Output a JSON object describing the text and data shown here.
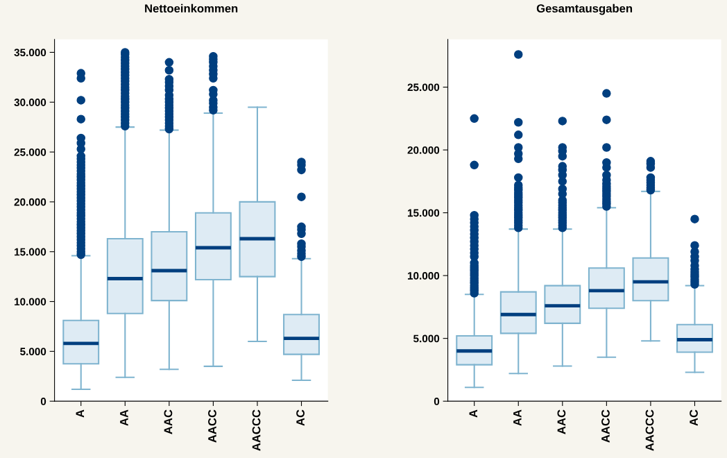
{
  "chart_data": [
    {
      "type": "box",
      "title": "Nettoeinkommen",
      "categories": [
        "A",
        "AA",
        "AAC",
        "AACC",
        "AACCC",
        "AC"
      ],
      "ylim": [
        0,
        36300
      ],
      "yticks": [
        {
          "value": 0,
          "label": "0"
        },
        {
          "value": 5000,
          "label": "5.000"
        },
        {
          "value": 10000,
          "label": "10.000"
        },
        {
          "value": 15000,
          "label": "15.000"
        },
        {
          "value": 20000,
          "label": "20.000"
        },
        {
          "value": 25000,
          "label": "25.000"
        },
        {
          "value": 30000,
          "label": "30.000"
        },
        {
          "value": 35000,
          "label": "35.000"
        }
      ],
      "grid": false,
      "color": "#deebf4",
      "boxes": [
        {
          "low": 1200,
          "q1": 3750,
          "median": 5800,
          "q3": 8100,
          "high": 14600,
          "outliers": [
            14700,
            15000,
            15300,
            15600,
            15900,
            16200,
            16500,
            16800,
            17100,
            17400,
            17700,
            18000,
            18300,
            18600,
            18900,
            19200,
            19500,
            19800,
            20100,
            20400,
            20700,
            21000,
            21300,
            21600,
            21900,
            22200,
            22500,
            22800,
            23100,
            23400,
            23700,
            24000,
            24300,
            24600,
            25300,
            25900,
            26400,
            28300,
            30200,
            32400,
            32900
          ]
        },
        {
          "low": 2400,
          "q1": 8800,
          "median": 12300,
          "q3": 16300,
          "high": 27500,
          "outliers": [
            27600,
            27900,
            28200,
            28500,
            28800,
            29100,
            29400,
            29700,
            30000,
            30300,
            30600,
            30900,
            31200,
            31500,
            31800,
            32100,
            32400,
            32700,
            33000,
            33300,
            33600,
            33900,
            34200,
            34500,
            34800,
            35000
          ]
        },
        {
          "low": 3200,
          "q1": 10100,
          "median": 13100,
          "q3": 17000,
          "high": 27200,
          "outliers": [
            27300,
            27600,
            27900,
            28200,
            28500,
            28800,
            29100,
            29400,
            29700,
            30000,
            30300,
            30700,
            31200,
            31600,
            32000,
            32300,
            33200,
            34000
          ]
        },
        {
          "low": 3500,
          "q1": 12200,
          "median": 15400,
          "q3": 18900,
          "high": 28900,
          "outliers": [
            29200,
            29500,
            29900,
            30200,
            30800,
            31200,
            32400,
            32800,
            33200,
            33600,
            34000,
            34300,
            34600
          ]
        },
        {
          "low": 6000,
          "q1": 12500,
          "median": 16300,
          "q3": 20000,
          "high": 29500
        },
        {
          "low": 2100,
          "q1": 4700,
          "median": 6300,
          "q3": 8700,
          "high": 14300,
          "outliers": [
            14500,
            14800,
            15100,
            15500,
            15800,
            16800,
            17200,
            17500,
            20500,
            23200,
            23700,
            24000
          ]
        }
      ]
    },
    {
      "type": "box",
      "title": "Gesamtausgaben",
      "categories": [
        "A",
        "AA",
        "AAC",
        "AACC",
        "AACCC",
        "AC"
      ],
      "ylim": [
        0,
        28800
      ],
      "yticks": [
        {
          "value": 0,
          "label": "0"
        },
        {
          "value": 5000,
          "label": "5.000"
        },
        {
          "value": 10000,
          "label": "10.000"
        },
        {
          "value": 15000,
          "label": "15.000"
        },
        {
          "value": 20000,
          "label": "20.000"
        },
        {
          "value": 25000,
          "label": "25.000"
        }
      ],
      "grid": false,
      "color": "#deebf4",
      "boxes": [
        {
          "low": 1100,
          "q1": 2900,
          "median": 4000,
          "q3": 5200,
          "high": 8500,
          "outliers": [
            8600,
            8800,
            9000,
            9200,
            9400,
            9600,
            9800,
            10000,
            10200,
            10400,
            10600,
            10800,
            11000,
            11500,
            11800,
            12100,
            12400,
            12700,
            13000,
            13300,
            13600,
            13900,
            14200,
            14500,
            14800,
            18800,
            22500
          ]
        },
        {
          "low": 2200,
          "q1": 5400,
          "median": 6900,
          "q3": 8700,
          "high": 13700,
          "outliers": [
            13800,
            14000,
            14200,
            14400,
            14600,
            14800,
            15000,
            15200,
            15400,
            15600,
            15800,
            16000,
            16200,
            16400,
            16600,
            16800,
            17000,
            17200,
            17800,
            19300,
            19700,
            20200,
            21200,
            22200,
            27600
          ]
        },
        {
          "low": 2800,
          "q1": 6200,
          "median": 7600,
          "q3": 9200,
          "high": 13700,
          "outliers": [
            13800,
            14000,
            14200,
            14400,
            14600,
            14800,
            15000,
            15200,
            15400,
            15600,
            15800,
            16000,
            16500,
            16900,
            17500,
            18000,
            18400,
            18700,
            19500,
            19900,
            20200,
            22300
          ]
        },
        {
          "low": 3500,
          "q1": 7400,
          "median": 8800,
          "q3": 10600,
          "high": 15400,
          "outliers": [
            15500,
            15700,
            15900,
            16100,
            16300,
            16500,
            16700,
            16900,
            17100,
            17300,
            17600,
            18000,
            18600,
            19000,
            20200,
            22400,
            24500
          ]
        },
        {
          "low": 4800,
          "q1": 8000,
          "median": 9500,
          "q3": 11400,
          "high": 16700,
          "outliers": [
            16800,
            17000,
            17200,
            17400,
            17600,
            17800,
            18600,
            18900,
            19100
          ]
        },
        {
          "low": 2300,
          "q1": 3900,
          "median": 4900,
          "q3": 6100,
          "high": 9200,
          "outliers": [
            9300,
            9500,
            9700,
            9900,
            10100,
            10300,
            10500,
            10800,
            11200,
            11500,
            11900,
            12400,
            14500
          ]
        }
      ]
    }
  ]
}
